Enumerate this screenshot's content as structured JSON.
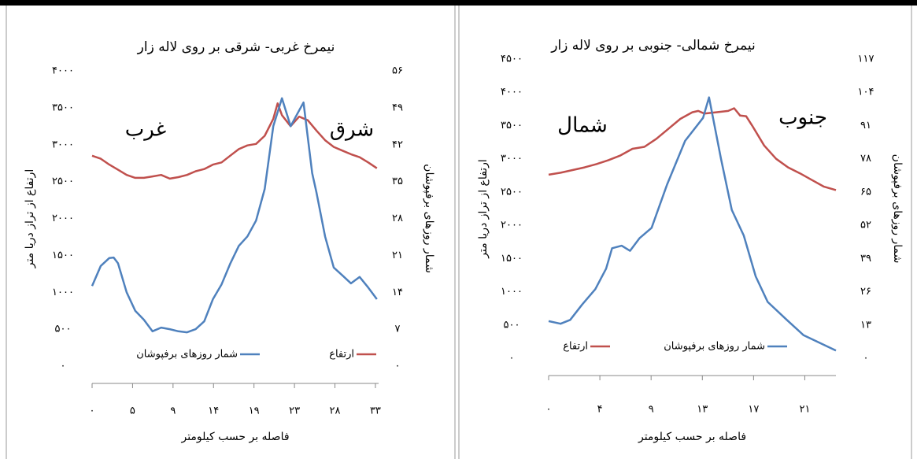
{
  "chart_data": [
    {
      "type": "line",
      "title": "نیمرخ غربی- شرقی بر روی لاله زار",
      "x_label": "فاصله بر حسب کیلومتر",
      "y_label": "ارتفاع از تراز دریا متر",
      "y2_label": "شمار روزهای برفپوشان",
      "annotations": [
        "غرب",
        "شرق"
      ],
      "xlim": [
        0,
        33.2
      ],
      "xticks": [
        {
          "value": 0,
          "label": "۰"
        },
        {
          "value": 4.69,
          "label": "۵"
        },
        {
          "value": 9.38,
          "label": "۹"
        },
        {
          "value": 14.07,
          "label": "۱۴"
        },
        {
          "value": 18.76,
          "label": "۱۹"
        },
        {
          "value": 23.45,
          "label": "۲۳"
        },
        {
          "value": 28.14,
          "label": "۲۸"
        },
        {
          "value": 32.83,
          "label": "۳۳"
        }
      ],
      "ylim": [
        0,
        4000
      ],
      "yticks": [
        {
          "value": 0,
          "label": "۰"
        },
        {
          "value": 500,
          "label": "۵۰۰"
        },
        {
          "value": 1000,
          "label": "۱۰۰۰"
        },
        {
          "value": 1500,
          "label": "۱۵۰۰"
        },
        {
          "value": 2000,
          "label": "۲۰۰۰"
        },
        {
          "value": 2500,
          "label": "۲۵۰۰"
        },
        {
          "value": 3000,
          "label": "۳۰۰۰"
        },
        {
          "value": 3500,
          "label": "۳۵۰۰"
        },
        {
          "value": 4000,
          "label": "۴۰۰۰"
        }
      ],
      "y2lim": [
        0,
        56
      ],
      "y2ticks": [
        {
          "value": 0,
          "label": "۰"
        },
        {
          "value": 7,
          "label": "۷"
        },
        {
          "value": 14,
          "label": "۱۴"
        },
        {
          "value": 21,
          "label": "۲۱"
        },
        {
          "value": 28,
          "label": "۲۸"
        },
        {
          "value": 35,
          "label": "۳۵"
        },
        {
          "value": 42,
          "label": "۴۲"
        },
        {
          "value": 49,
          "label": "۴۹"
        },
        {
          "value": 56,
          "label": "۵۶"
        }
      ],
      "series": [
        {
          "name": "ارتفاع",
          "color": "#c0504d",
          "axis": "y",
          "x": [
            0,
            1,
            2,
            3,
            4,
            5,
            6,
            7,
            8,
            9,
            10,
            11,
            12,
            13,
            14,
            15,
            16,
            17,
            18,
            19,
            20,
            21,
            21.5,
            22,
            23,
            24,
            25,
            26,
            27,
            28,
            29,
            30,
            31,
            32,
            33
          ],
          "values": [
            2850,
            2810,
            2730,
            2660,
            2590,
            2550,
            2550,
            2570,
            2590,
            2540,
            2560,
            2590,
            2640,
            2670,
            2730,
            2760,
            2850,
            2940,
            2990,
            3010,
            3120,
            3350,
            3560,
            3400,
            3250,
            3380,
            3330,
            3190,
            3060,
            2970,
            2920,
            2870,
            2830,
            2760,
            2680
          ]
        },
        {
          "name": "شمار روزهای برفپوشان",
          "color": "#4f81bd",
          "axis": "y2",
          "x": [
            0,
            1,
            2,
            2.5,
            3,
            4,
            5,
            6,
            7,
            8,
            9,
            10,
            11,
            12,
            13,
            14,
            15,
            16,
            17,
            18,
            19,
            20,
            21,
            22,
            23,
            24,
            24.5,
            25.5,
            26,
            27,
            28,
            29,
            30,
            31,
            32,
            33
          ],
          "values": [
            15.2,
            19,
            20.5,
            20.6,
            19.5,
            14,
            10.5,
            8.8,
            6.6,
            7.3,
            7,
            6.6,
            6.4,
            7,
            8.5,
            12.7,
            15.5,
            19.4,
            22.8,
            24.6,
            27.6,
            33.6,
            45.5,
            50.8,
            45.5,
            48.5,
            50,
            36.6,
            32.9,
            24.6,
            18.7,
            17.2,
            15.7,
            16.9,
            14.9,
            12.7
          ]
        }
      ]
    },
    {
      "type": "line",
      "title": "نیمرخ شمالی- جنوبی بر روی لاله زار",
      "x_label": "فاصله بر حسب کیلومتر",
      "y_label": "ارتفاع از تراز دریا متر",
      "y2_label": "شمار روزهای برفپوشان",
      "annotations": [
        "شمال",
        "جنوب"
      ],
      "xlim": [
        0,
        24
      ],
      "xticks": [
        {
          "value": 0,
          "label": "۰"
        },
        {
          "value": 4.28,
          "label": "۴"
        },
        {
          "value": 8.56,
          "label": "۹"
        },
        {
          "value": 12.84,
          "label": "۱۳"
        },
        {
          "value": 17.12,
          "label": "۱۷"
        },
        {
          "value": 21.4,
          "label": "۲۱"
        }
      ],
      "ylim": [
        0,
        4500
      ],
      "yticks": [
        {
          "value": 0,
          "label": "۰"
        },
        {
          "value": 500,
          "label": "۵۰۰"
        },
        {
          "value": 1000,
          "label": "۱۰۰۰"
        },
        {
          "value": 1500,
          "label": "۱۵۰۰"
        },
        {
          "value": 2000,
          "label": "۲۰۰۰"
        },
        {
          "value": 2500,
          "label": "۲۵۰۰"
        },
        {
          "value": 3000,
          "label": "۳۰۰۰"
        },
        {
          "value": 3500,
          "label": "۳۵۰۰"
        },
        {
          "value": 4000,
          "label": "۴۰۰۰"
        },
        {
          "value": 4500,
          "label": "۴۵۰۰"
        }
      ],
      "y2lim": [
        0,
        117
      ],
      "y2ticks": [
        {
          "value": 0,
          "label": "۰"
        },
        {
          "value": 13,
          "label": "۱۳"
        },
        {
          "value": 26,
          "label": "۲۶"
        },
        {
          "value": 39,
          "label": "۳۹"
        },
        {
          "value": 52,
          "label": "۵۲"
        },
        {
          "value": 65,
          "label": "۶۵"
        },
        {
          "value": 78,
          "label": "۷۸"
        },
        {
          "value": 91,
          "label": "۹۱"
        },
        {
          "value": 104,
          "label": "۱۰۴"
        },
        {
          "value": 117,
          "label": "۱۱۷"
        }
      ],
      "series": [
        {
          "name": "ارتفاع",
          "color": "#c0504d",
          "axis": "y",
          "x": [
            0,
            1,
            2,
            3,
            4,
            5,
            6,
            7,
            8,
            9,
            10,
            11,
            12,
            12.5,
            13,
            14,
            15,
            15.5,
            16,
            16.5,
            17,
            18,
            19,
            20,
            21,
            22,
            23,
            24
          ],
          "values": [
            2760,
            2790,
            2830,
            2870,
            2920,
            2980,
            3050,
            3150,
            3180,
            3300,
            3450,
            3600,
            3700,
            3720,
            3680,
            3700,
            3720,
            3760,
            3650,
            3640,
            3500,
            3200,
            3000,
            2870,
            2780,
            2680,
            2580,
            2530
          ]
        },
        {
          "name": "شمار روزهای برفپوشان",
          "color": "#4f81bd",
          "axis": "y2",
          "x": [
            0,
            1,
            1.8,
            2.8,
            3.9,
            4.8,
            5.3,
            6.1,
            6.8,
            7.6,
            8.6,
            9.9,
            11.4,
            12.9,
            13.4,
            14.4,
            15.3,
            16.3,
            17.3,
            18.3,
            19.9,
            21.3,
            24
          ],
          "values": [
            14.5,
            13.5,
            15,
            21,
            27,
            35,
            43,
            44,
            42,
            47,
            51,
            68,
            85,
            94,
            102,
            78,
            58,
            48,
            32,
            22,
            15,
            9,
            3
          ]
        }
      ]
    }
  ]
}
